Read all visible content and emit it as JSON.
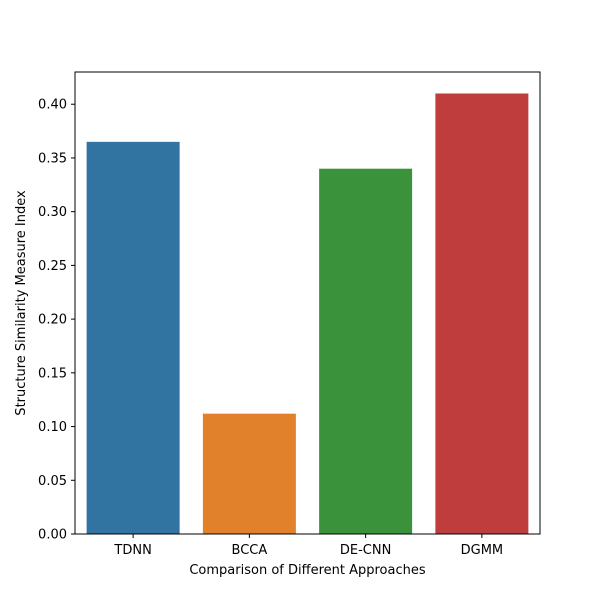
{
  "chart_data": {
    "type": "bar",
    "title": "",
    "xlabel": "Comparison of Different Approaches",
    "ylabel": "Structure Similarity Measure Index",
    "categories": [
      "TDNN",
      "BCCA",
      "DE-CNN",
      "DGMM"
    ],
    "values": [
      0.365,
      0.112,
      0.34,
      0.41
    ],
    "colors": [
      "#3274a1",
      "#e1812c",
      "#3a923a",
      "#c03d3e"
    ],
    "ylim": [
      0,
      0.43
    ],
    "yticks": [
      "0.00",
      "0.05",
      "0.10",
      "0.15",
      "0.20",
      "0.25",
      "0.30",
      "0.35",
      "0.40"
    ],
    "grid": false,
    "legend": "none"
  }
}
